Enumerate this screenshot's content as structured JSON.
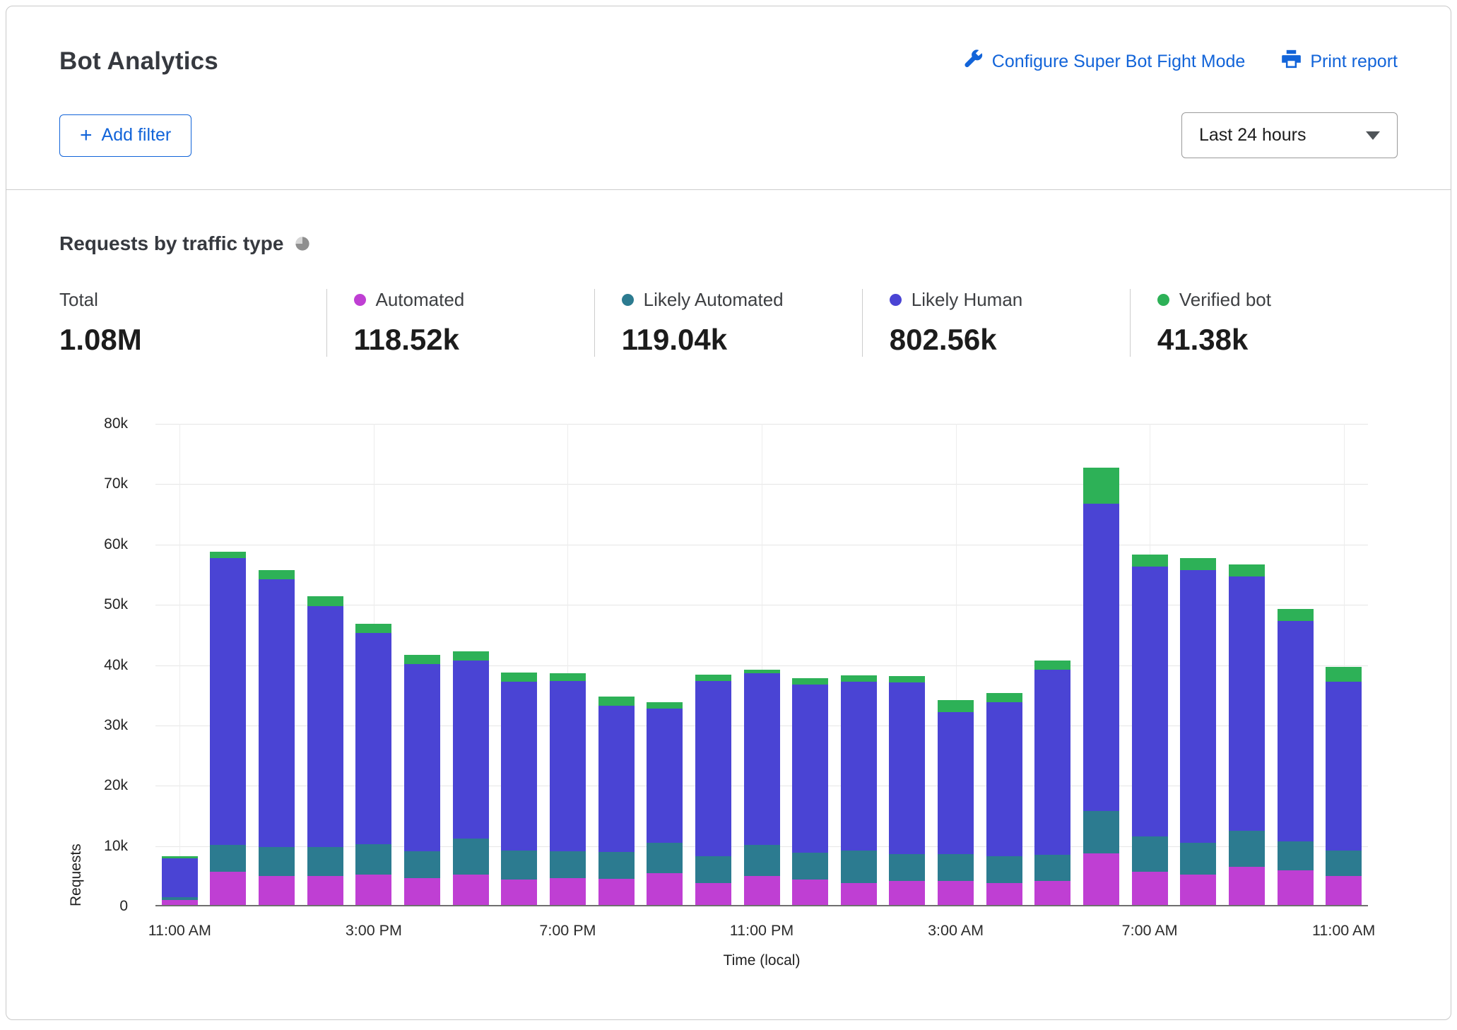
{
  "header": {
    "title": "Bot Analytics",
    "configure_link": "Configure Super Bot Fight Mode",
    "print_link": "Print report",
    "add_filter_label": "Add filter",
    "add_filter_plus": "+",
    "time_range": "Last 24 hours"
  },
  "section": {
    "title": "Requests by traffic type"
  },
  "stats": [
    {
      "label": "Total",
      "value": "1.08M",
      "color": null
    },
    {
      "label": "Automated",
      "value": "118.52k",
      "color": "#bf3fd3"
    },
    {
      "label": "Likely Automated",
      "value": "119.04k",
      "color": "#2c7b90"
    },
    {
      "label": "Likely Human",
      "value": "802.56k",
      "color": "#4a44d4"
    },
    {
      "label": "Verified bot",
      "value": "41.38k",
      "color": "#2db157"
    }
  ],
  "chart_data": {
    "type": "bar",
    "stacked": true,
    "title": "Requests by traffic type",
    "xlabel": "Time (local)",
    "ylabel": "Requests",
    "ylim": [
      0,
      80000
    ],
    "grid": true,
    "y_ticks": [
      "0",
      "10k",
      "20k",
      "30k",
      "40k",
      "50k",
      "60k",
      "70k",
      "80k"
    ],
    "x_ticks": [
      {
        "index": 0,
        "label": "11:00 AM"
      },
      {
        "index": 4,
        "label": "3:00 PM"
      },
      {
        "index": 8,
        "label": "7:00 PM"
      },
      {
        "index": 12,
        "label": "11:00 PM"
      },
      {
        "index": 16,
        "label": "3:00 AM"
      },
      {
        "index": 20,
        "label": "7:00 AM"
      },
      {
        "index": 24,
        "label": "11:00 AM"
      }
    ],
    "series": [
      {
        "name": "Automated",
        "color": "#bf3fd3",
        "values": [
          800,
          5500,
          4800,
          4800,
          5000,
          4500,
          5000,
          4200,
          4500,
          4300,
          5300,
          3600,
          4800,
          4200,
          3600,
          4000,
          4000,
          3600,
          4000,
          8500,
          5500,
          5000,
          6300,
          5700,
          4800
        ]
      },
      {
        "name": "Likely Automated",
        "color": "#2c7b90",
        "values": [
          500,
          4500,
          4800,
          4800,
          5000,
          4500,
          6000,
          4800,
          4500,
          4500,
          5000,
          4400,
          5200,
          4400,
          5400,
          4500,
          4500,
          4400,
          4300,
          7000,
          5800,
          5300,
          6000,
          4800,
          4200
        ]
      },
      {
        "name": "Likely Human",
        "color": "#4a44d4",
        "values": [
          6400,
          47500,
          44400,
          39900,
          35000,
          31000,
          29500,
          28000,
          28200,
          24200,
          22200,
          29000,
          28500,
          27900,
          28000,
          28500,
          23500,
          25500,
          30700,
          51000,
          44700,
          45200,
          42200,
          36500,
          28000
        ]
      },
      {
        "name": "Verified bot",
        "color": "#2db157",
        "values": [
          300,
          1000,
          1500,
          1600,
          1500,
          1500,
          1500,
          1500,
          1300,
          1500,
          1000,
          1000,
          600,
          1000,
          1000,
          1000,
          2000,
          1500,
          1500,
          6000,
          2000,
          2000,
          2000,
          2000,
          2500
        ]
      }
    ]
  }
}
